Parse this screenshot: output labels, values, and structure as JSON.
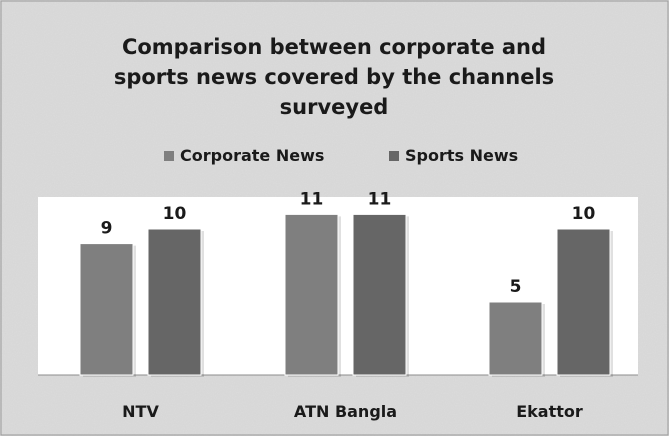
{
  "chart_data": {
    "type": "bar",
    "title": [
      "Comparison between corporate and",
      "sports news covered by the channels",
      "surveyed"
    ],
    "categories": [
      "NTV",
      "ATN Bangla",
      "Ekattor"
    ],
    "series": [
      {
        "name": "Corporate News",
        "values": [
          9,
          11,
          5
        ]
      },
      {
        "name": "Sports News",
        "values": [
          10,
          11,
          10
        ]
      }
    ],
    "ylim": [
      0,
      12
    ],
    "legend_position": "top",
    "grid": false,
    "data_labels": true
  },
  "colors": {
    "corporate": "#7f7f7f",
    "sports": "#666666",
    "background": "#dcdcdc",
    "plot_area": "#ffffff",
    "text": "#1a1a1a"
  }
}
